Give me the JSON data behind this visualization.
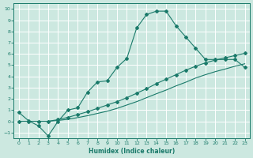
{
  "background_color": "#cce8e0",
  "grid_color": "#b0d8cc",
  "line_color": "#1a7a6a",
  "x_label": "Humidex (Indice chaleur)",
  "xlim": [
    -0.5,
    23.5
  ],
  "ylim": [
    -1.5,
    10.5
  ],
  "x_ticks": [
    0,
    1,
    2,
    3,
    4,
    5,
    6,
    7,
    8,
    9,
    10,
    11,
    12,
    13,
    14,
    15,
    16,
    17,
    18,
    19,
    20,
    21,
    22,
    23
  ],
  "y_ticks": [
    -1,
    0,
    1,
    2,
    3,
    4,
    5,
    6,
    7,
    8,
    9,
    10
  ],
  "curve1_x": [
    0,
    1,
    2,
    3,
    4,
    5,
    6,
    7,
    8,
    9,
    10,
    11,
    12,
    13,
    14,
    15,
    16,
    17,
    18,
    19,
    20,
    21,
    22,
    23
  ],
  "curve1_y": [
    0.8,
    0.05,
    -0.4,
    -1.3,
    0.0,
    1.0,
    1.2,
    2.6,
    3.5,
    3.6,
    4.8,
    5.6,
    8.3,
    9.5,
    9.8,
    9.8,
    8.5,
    7.5,
    6.5,
    5.5,
    5.5,
    5.5,
    5.5,
    4.8
  ],
  "curve2_x": [
    0,
    1,
    2,
    3,
    4,
    5,
    6,
    7,
    8,
    9,
    10,
    11,
    12,
    13,
    14,
    15,
    16,
    17,
    18,
    19,
    20,
    21,
    22,
    23
  ],
  "curve2_y": [
    0.0,
    0.0,
    0.0,
    0.0,
    0.15,
    0.35,
    0.6,
    0.85,
    1.15,
    1.45,
    1.75,
    2.1,
    2.5,
    2.9,
    3.35,
    3.75,
    4.15,
    4.55,
    4.9,
    5.2,
    5.45,
    5.65,
    5.85,
    6.05
  ],
  "curve3_x": [
    0,
    1,
    2,
    3,
    4,
    5,
    6,
    7,
    8,
    9,
    10,
    11,
    12,
    13,
    14,
    15,
    16,
    17,
    18,
    19,
    20,
    21,
    22,
    23
  ],
  "curve3_y": [
    0.0,
    0.0,
    0.0,
    0.0,
    0.08,
    0.18,
    0.33,
    0.5,
    0.7,
    0.9,
    1.15,
    1.45,
    1.75,
    2.1,
    2.45,
    2.78,
    3.15,
    3.48,
    3.85,
    4.15,
    4.42,
    4.65,
    4.9,
    5.12
  ]
}
